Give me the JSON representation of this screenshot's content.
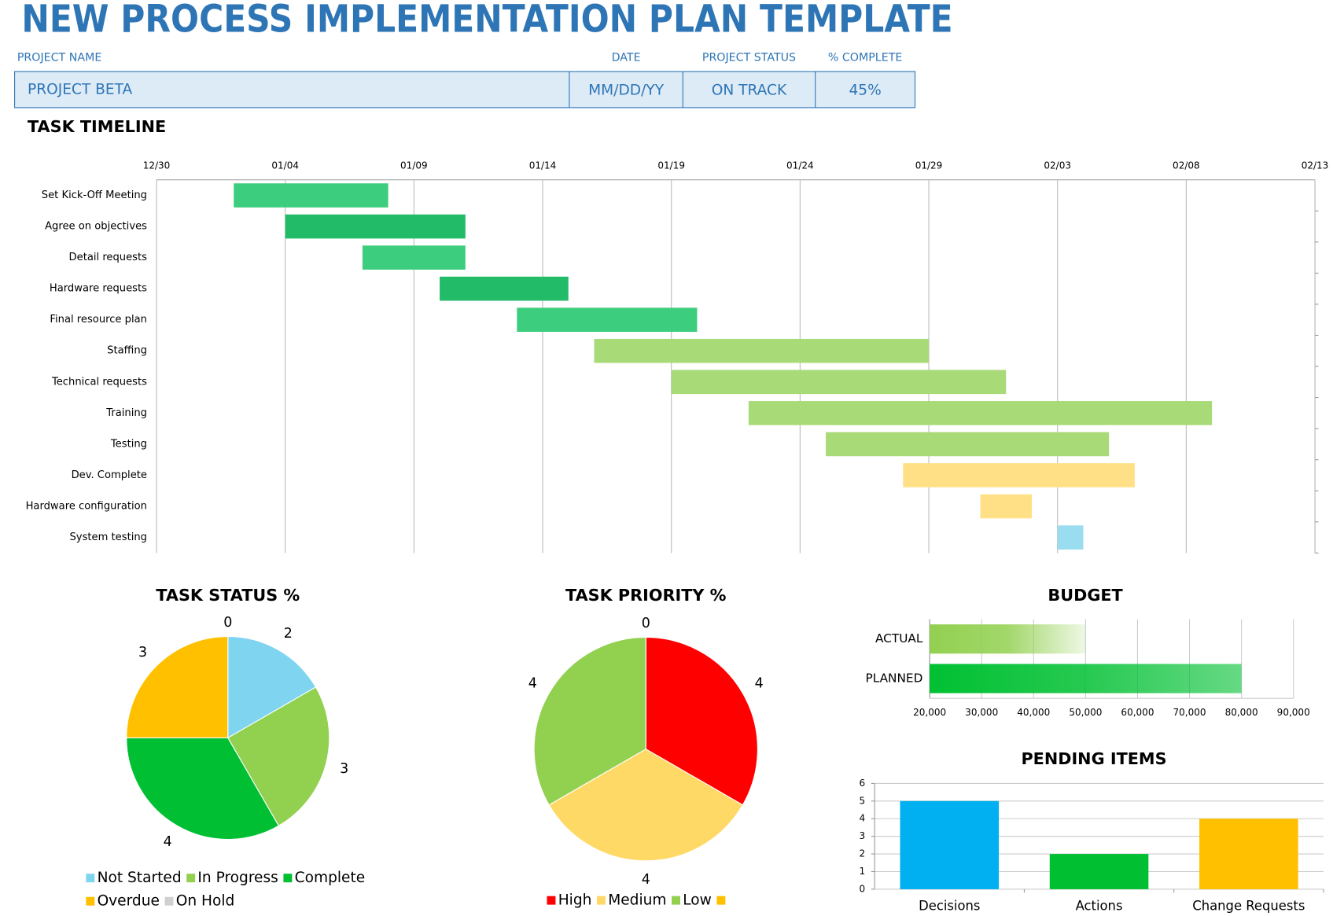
{
  "header": {
    "title": "NEW PROCESS IMPLEMENTATION PLAN TEMPLATE",
    "fields": [
      {
        "label": "PROJECT NAME",
        "value": "PROJECT BETA"
      },
      {
        "label": "DATE",
        "value": "MM/DD/YY"
      },
      {
        "label": "PROJECT STATUS",
        "value": "ON TRACK"
      },
      {
        "label": "% COMPLETE",
        "value": "45%"
      }
    ]
  },
  "chart_data": [
    {
      "type": "gantt",
      "title": "TASK TIMELINE",
      "categories": [
        "Set Kick-Off Meeting",
        "Agree on objectives",
        "Detail requests",
        "Hardware requests",
        "Final resource plan",
        "Staffing",
        "Technical requests",
        "Training",
        "Testing",
        "Dev. Complete",
        "Hardware configuration",
        "System testing"
      ],
      "start": [
        "01/02",
        "01/04",
        "01/07",
        "01/10",
        "01/13",
        "01/16",
        "01/19",
        "01/22",
        "01/25",
        "01/28",
        "01/31",
        "02/03"
      ],
      "end": [
        "01/08",
        "01/11",
        "01/11",
        "01/15",
        "01/20",
        "01/29",
        "02/01",
        "02/09",
        "02/05",
        "02/06",
        "02/02",
        "02/04"
      ],
      "colors": [
        "#3DCD7E",
        "#22BB68",
        "#3DCD7E",
        "#22BB68",
        "#3DCD7E",
        "#A9DA78",
        "#A9DA78",
        "#A9DA78",
        "#A9DA78",
        "#FFE086",
        "#FFE086",
        "#9ADCF0"
      ],
      "xlim": [
        "12/30",
        "02/13"
      ],
      "xticks": [
        "12/30",
        "01/04",
        "01/09",
        "01/14",
        "01/19",
        "01/24",
        "01/29",
        "02/03",
        "02/08",
        "02/13"
      ],
      "grid": true
    },
    {
      "type": "pie",
      "title": "TASK STATUS %",
      "categories": [
        "Not Started",
        "In Progress",
        "Complete",
        "Overdue",
        "On Hold"
      ],
      "values": [
        2,
        3,
        4,
        3,
        0
      ],
      "colors": [
        "#7FD4F0",
        "#92D050",
        "#00BF32",
        "#FFC000",
        "#D0D0D0"
      ],
      "legend": "bottom"
    },
    {
      "type": "pie",
      "title": "TASK PRIORITY %",
      "categories": [
        "High",
        "Medium",
        "Low",
        null
      ],
      "values": [
        4,
        4,
        4,
        0
      ],
      "colors": [
        "#FF0000",
        "#FFD966",
        "#92D050",
        "#FFC000"
      ],
      "legend": "bottom"
    },
    {
      "type": "hbar",
      "title": "BUDGET",
      "categories": [
        "ACTUAL",
        "PLANNED"
      ],
      "values": [
        50000,
        80000
      ],
      "colors": [
        "#92D050",
        "#00C032"
      ],
      "xlim": [
        20000,
        90000
      ],
      "xticks": [
        {
          "value": 20000,
          "label": "20,000"
        },
        {
          "value": 30000,
          "label": "30,000"
        },
        {
          "value": 40000,
          "label": "40,000"
        },
        {
          "value": 50000,
          "label": "50,000"
        },
        {
          "value": 60000,
          "label": "60,000"
        },
        {
          "value": 70000,
          "label": "70,000"
        },
        {
          "value": 80000,
          "label": "80,000"
        },
        {
          "value": 90000,
          "label": "90,000"
        }
      ],
      "grid": true
    },
    {
      "type": "bar",
      "title": "PENDING ITEMS",
      "categories": [
        "Decisions",
        "Actions",
        "Change Requests"
      ],
      "values": [
        5,
        2,
        4
      ],
      "colors": [
        "#00B0F0",
        "#00C032",
        "#FFC000"
      ],
      "ylim": [
        0,
        6
      ],
      "yticks": [
        0,
        1,
        2,
        3,
        4,
        5,
        6
      ],
      "grid": true
    }
  ]
}
